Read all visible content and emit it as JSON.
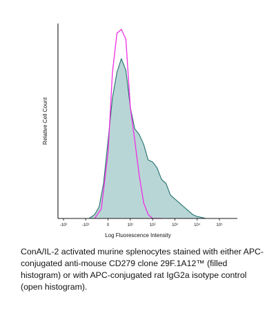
{
  "chart_data": {
    "type": "area",
    "title": "",
    "xlabel": "Log Fluorescence Intensity",
    "ylabel": "Relative Cell Count",
    "x_scale": "log",
    "xlim": [
      -2,
      5
    ],
    "ylim": [
      0,
      1
    ],
    "x_ticks": [
      {
        "value": -2,
        "label": "-10²"
      },
      {
        "value": -1,
        "label": "-10¹"
      },
      {
        "value": 0,
        "label": "0"
      },
      {
        "value": 1,
        "label": "10¹"
      },
      {
        "value": 2,
        "label": "10²"
      },
      {
        "value": 3,
        "label": "10³"
      },
      {
        "value": 4,
        "label": "10⁴"
      },
      {
        "value": 5,
        "label": "10⁵"
      }
    ],
    "grid": false,
    "legend": "none",
    "series": [
      {
        "style": "filled",
        "fill_color": "#b9d6d6",
        "line_color": "#1e6f6b",
        "x": [
          -0.85,
          -0.6,
          -0.4,
          -0.2,
          0.0,
          0.2,
          0.4,
          0.6,
          0.8,
          1.0,
          1.2,
          1.4,
          1.6,
          1.8,
          2.0,
          2.2,
          2.4,
          2.6,
          2.8,
          3.0,
          3.2,
          3.4,
          3.6,
          3.8,
          4.0,
          4.2,
          4.4,
          4.6
        ],
        "y": [
          0.0,
          0.02,
          0.06,
          0.18,
          0.4,
          0.62,
          0.75,
          0.82,
          0.76,
          0.57,
          0.46,
          0.43,
          0.38,
          0.3,
          0.29,
          0.26,
          0.2,
          0.18,
          0.12,
          0.1,
          0.08,
          0.06,
          0.04,
          0.02,
          0.01,
          0.005,
          0.0,
          0.0
        ]
      },
      {
        "style": "open",
        "line_color": "#ee2ee4",
        "x": [
          -0.6,
          -0.3,
          0.0,
          0.2,
          0.4,
          0.6,
          0.8,
          1.0,
          1.2,
          1.4,
          1.6,
          1.8,
          2.0,
          2.2,
          2.4
        ],
        "y": [
          0.0,
          0.05,
          0.34,
          0.75,
          0.95,
          0.97,
          0.92,
          0.57,
          0.4,
          0.22,
          0.08,
          0.02,
          0.0,
          0.0,
          0.0
        ]
      }
    ]
  },
  "caption": "ConA/IL-2 activated murine splenocytes stained with either APC-conjugated anti-mouse CD279 clone 29F.1A12™ (filled histogram) or with APC-conjugated rat IgG2a isotype control (open histogram)."
}
